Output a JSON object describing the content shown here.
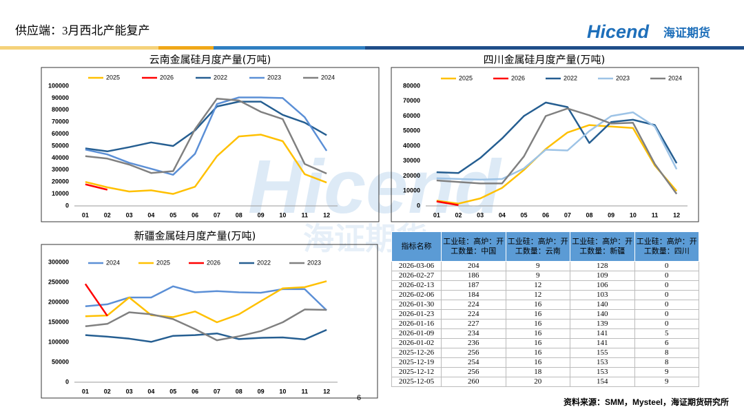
{
  "header": {
    "title": "供应端：3月西北产能复产",
    "logo": "Hicend",
    "logo_cn": "海证期货"
  },
  "chart_data": [
    {
      "type": "line",
      "title": "云南金属硅月度产量(万吨)",
      "categories": [
        "01",
        "02",
        "03",
        "04",
        "05",
        "06",
        "07",
        "08",
        "09",
        "10",
        "11",
        "12"
      ],
      "ylim": [
        0,
        100000
      ],
      "yticks": [
        0,
        10000,
        20000,
        30000,
        40000,
        50000,
        60000,
        70000,
        80000,
        90000,
        100000
      ],
      "legend": "top",
      "series": [
        {
          "name": "2025",
          "color": "#FFC000",
          "values": [
            20000,
            15500,
            12000,
            13000,
            10000,
            16000,
            41500,
            58000,
            59500,
            54000,
            26500,
            19500
          ]
        },
        {
          "name": "2026",
          "color": "#FF0000",
          "values": [
            18000,
            13500,
            null,
            null,
            null,
            null,
            null,
            null,
            null,
            null,
            null,
            null
          ]
        },
        {
          "name": "2022",
          "color": "#255E91",
          "values": [
            48000,
            45500,
            49000,
            53000,
            50000,
            63000,
            83000,
            87000,
            87000,
            76000,
            69500,
            59000
          ]
        },
        {
          "name": "2023",
          "color": "#5B8FD6",
          "values": [
            47000,
            43000,
            36000,
            31000,
            26000,
            43500,
            85000,
            90500,
            90500,
            90000,
            74000,
            46000
          ]
        },
        {
          "name": "2024",
          "color": "#808080",
          "values": [
            41500,
            39500,
            34500,
            27500,
            29000,
            64000,
            89500,
            88000,
            78500,
            72500,
            35000,
            27000
          ]
        }
      ]
    },
    {
      "type": "line",
      "title": "四川金属硅月度产量(万吨)",
      "categories": [
        "01",
        "02",
        "03",
        "04",
        "05",
        "06",
        "07",
        "08",
        "09",
        "10",
        "11",
        "12"
      ],
      "ylim": [
        0,
        80000
      ],
      "yticks": [
        0,
        10000,
        20000,
        30000,
        40000,
        50000,
        60000,
        70000,
        80000
      ],
      "legend": "top",
      "series": [
        {
          "name": "2025",
          "color": "#FFC000",
          "values": [
            3500,
            1500,
            5000,
            12000,
            24000,
            38000,
            49000,
            54000,
            53000,
            52000,
            27000,
            10000
          ]
        },
        {
          "name": "2026",
          "color": "#FF0000",
          "values": [
            3000,
            500,
            null,
            null,
            null,
            null,
            null,
            null,
            null,
            null,
            null,
            null
          ]
        },
        {
          "name": "2022",
          "color": "#255E91",
          "values": [
            22500,
            22000,
            32000,
            45000,
            60000,
            69000,
            66000,
            42000,
            56000,
            57500,
            54000,
            28500
          ]
        },
        {
          "name": "2023",
          "color": "#9DC3E6",
          "values": [
            18500,
            18000,
            17500,
            18000,
            25000,
            37500,
            37000,
            50000,
            60000,
            62500,
            53000,
            24500
          ]
        },
        {
          "name": "2024",
          "color": "#808080",
          "values": [
            17000,
            16000,
            15000,
            15000,
            33000,
            60000,
            65000,
            60500,
            55000,
            55500,
            28000,
            8000
          ]
        }
      ]
    },
    {
      "type": "line",
      "title": "新疆金属硅月度产量(万吨)",
      "categories": [
        "01",
        "02",
        "03",
        "04",
        "05",
        "06",
        "07",
        "08",
        "09",
        "10",
        "11",
        "12"
      ],
      "ylim": [
        0,
        300000
      ],
      "yticks": [
        0,
        50000,
        100000,
        150000,
        200000,
        250000,
        300000
      ],
      "legend": "top",
      "series": [
        {
          "name": "2024",
          "color": "#5B8FD6",
          "values": [
            190000,
            195000,
            212000,
            212000,
            240000,
            225000,
            228000,
            225000,
            224000,
            233000,
            233000,
            180000
          ]
        },
        {
          "name": "2025",
          "color": "#FFC000",
          "values": [
            165000,
            167000,
            212000,
            168000,
            163000,
            177000,
            150000,
            170000,
            203000,
            235000,
            238000,
            253000
          ]
        },
        {
          "name": "2026",
          "color": "#FF0000",
          "values": [
            246000,
            166000,
            null,
            null,
            null,
            null,
            null,
            null,
            null,
            null,
            null,
            null
          ]
        },
        {
          "name": "2022",
          "color": "#255E91",
          "values": [
            118000,
            114000,
            109000,
            101000,
            116000,
            118000,
            122000,
            108000,
            111000,
            112000,
            107000,
            131000
          ]
        },
        {
          "name": "2023",
          "color": "#808080",
          "values": [
            140000,
            146000,
            175000,
            170000,
            158000,
            133000,
            105000,
            115000,
            128000,
            150000,
            182000,
            181000
          ]
        }
      ]
    }
  ],
  "table": {
    "columns": [
      "指标名称",
      "工业硅：高炉：开工数量：中国",
      "工业硅：高炉：开工数量：云南",
      "工业硅：高炉：开工数量：新疆",
      "工业硅：高炉：开工数量：四川"
    ],
    "rows": [
      [
        "2026-03-06",
        204,
        9,
        128,
        0
      ],
      [
        "2026-02-27",
        186,
        9,
        109,
        0
      ],
      [
        "2026-02-13",
        187,
        12,
        106,
        0
      ],
      [
        "2026-02-06",
        184,
        12,
        103,
        0
      ],
      [
        "2026-01-30",
        224,
        16,
        140,
        0
      ],
      [
        "2026-01-23",
        224,
        16,
        140,
        0
      ],
      [
        "2026-01-16",
        227,
        16,
        139,
        0
      ],
      [
        "2026-01-09",
        234,
        16,
        141,
        5
      ],
      [
        "2026-01-02",
        236,
        16,
        141,
        6
      ],
      [
        "2025-12-26",
        256,
        16,
        155,
        8
      ],
      [
        "2025-12-19",
        254,
        16,
        153,
        8
      ],
      [
        "2025-12-12",
        256,
        18,
        153,
        9
      ],
      [
        "2025-12-05",
        260,
        20,
        154,
        9
      ]
    ]
  },
  "footer": {
    "source": "资料来源：SMM，Mysteel，海证期货研究所",
    "page": "6"
  }
}
